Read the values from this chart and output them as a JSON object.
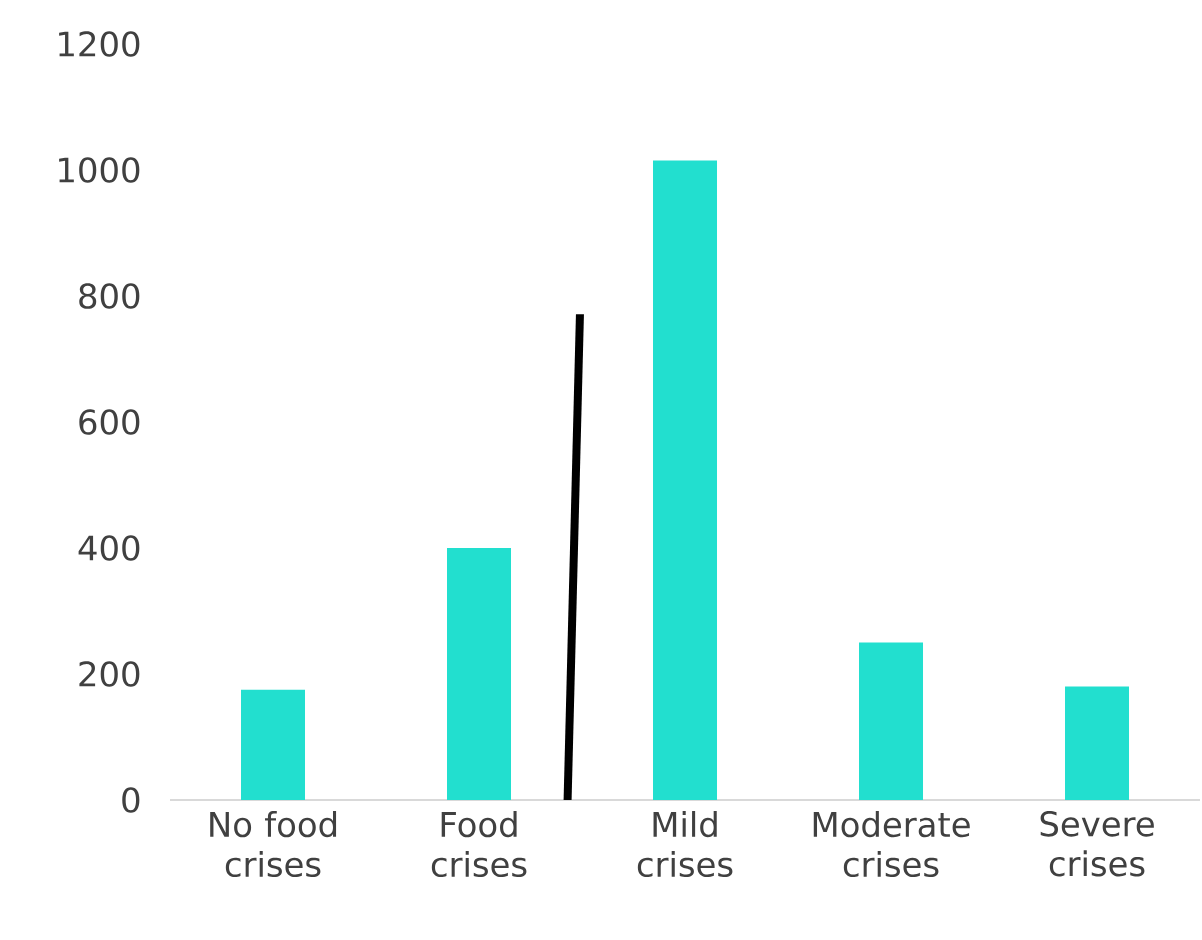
{
  "chart_data": {
    "type": "bar",
    "categories": [
      "No food crises",
      "Food crises",
      "Mild crises",
      "Moderate crises",
      "Severe crises"
    ],
    "values": [
      175,
      400,
      1015,
      250,
      180
    ],
    "color": "#22dfcf",
    "ylim": [
      0,
      1200
    ],
    "yticks": [
      0,
      200,
      400,
      600,
      800,
      1000,
      1200
    ],
    "grid": false,
    "legend": false
  }
}
